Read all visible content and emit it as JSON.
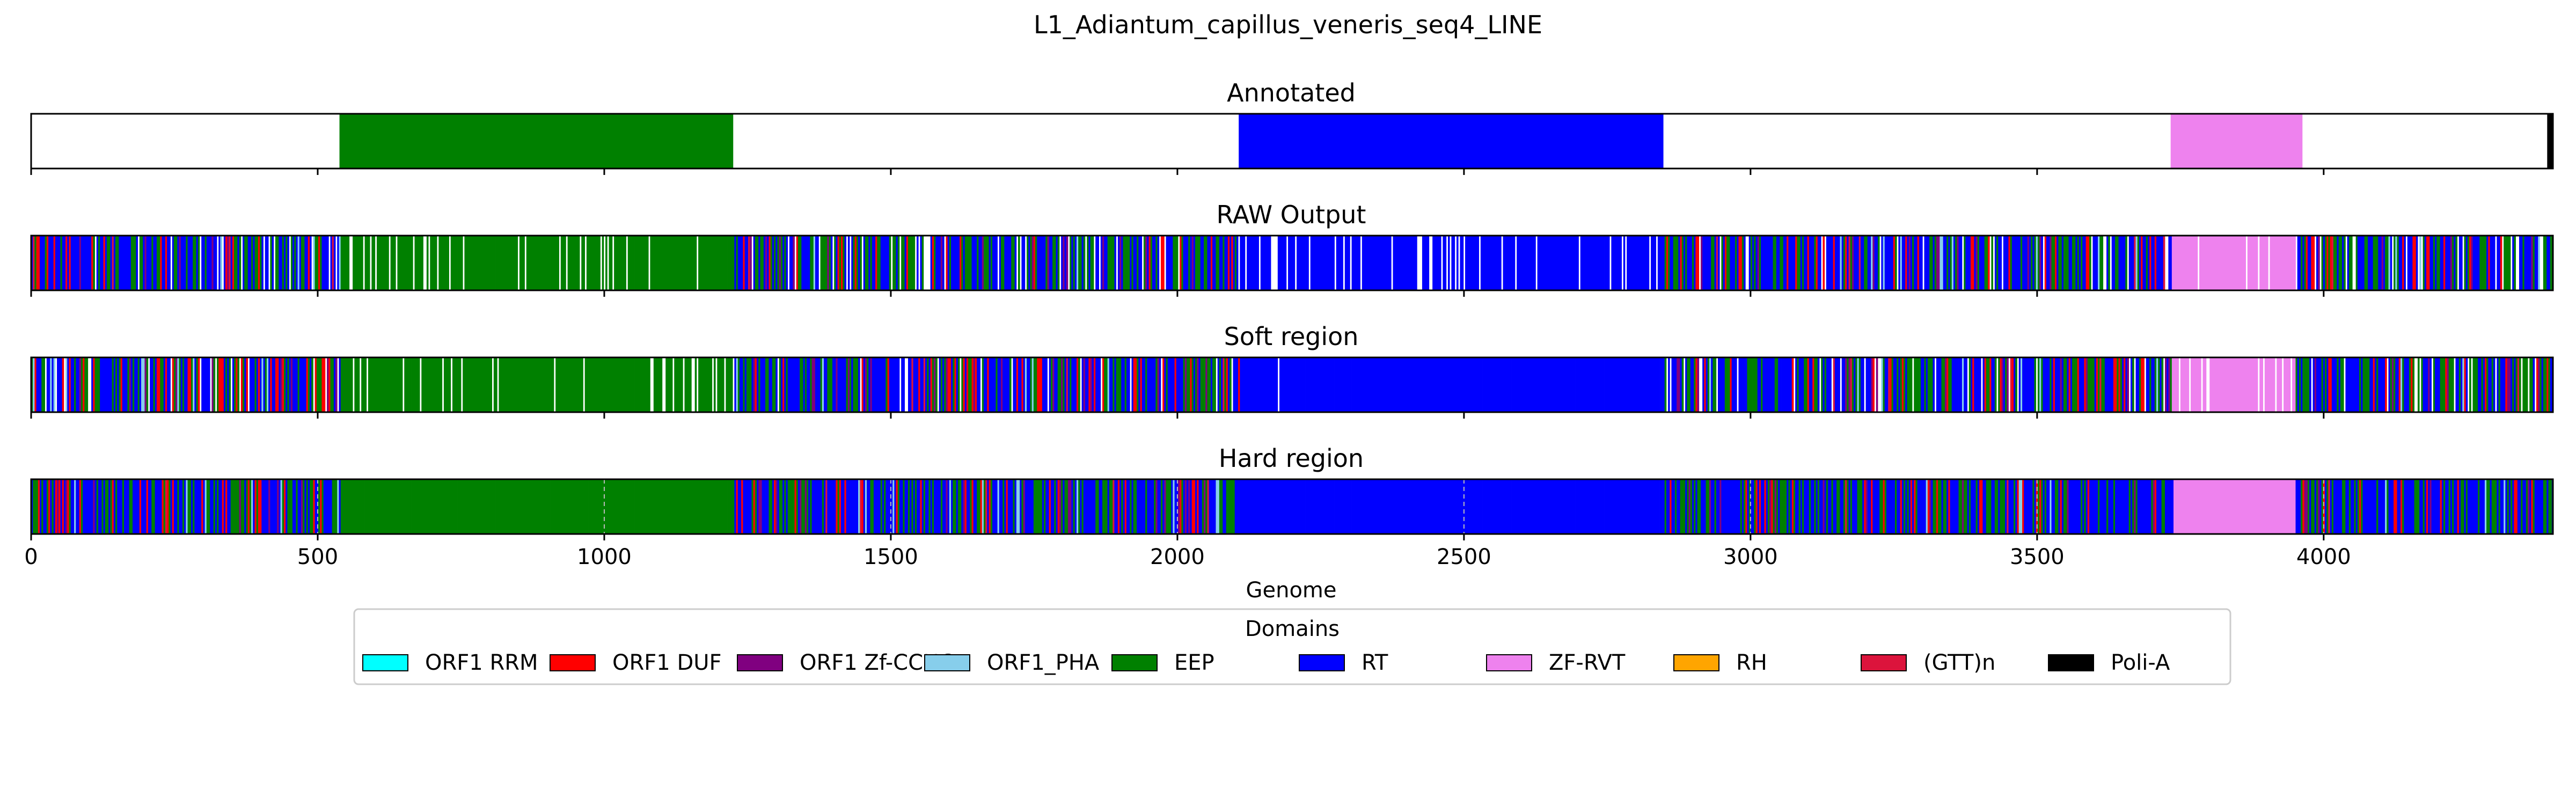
{
  "figure": {
    "title": "L1_Adiantum_capillus_veneris_seq4_LINE"
  },
  "chart_data": {
    "type": "track",
    "xlim": [
      0,
      4400
    ],
    "xticks": [
      0,
      500,
      1000,
      1500,
      2000,
      2500,
      3000,
      3500,
      4000
    ],
    "xlabel": "Genome",
    "grid": "dashed vertical lines on the Hard region track",
    "legend": {
      "title": "Domains",
      "placement": "bottom-center",
      "entries": [
        {
          "label": "ORF1 RRM",
          "color": "#00ffff"
        },
        {
          "label": "ORF1 DUF",
          "color": "#ff0000"
        },
        {
          "label": "ORF1 Zf-CCHC",
          "color": "#800080"
        },
        {
          "label": "ORF1_PHA",
          "color": "#87ceeb"
        },
        {
          "label": "EEP",
          "color": "#008000"
        },
        {
          "label": "RT",
          "color": "#0000ff"
        },
        {
          "label": "ZF-RVT",
          "color": "#ee82ee"
        },
        {
          "label": "RH",
          "color": "#ffa500"
        },
        {
          "label": "(GTT)n",
          "color": "#dc143c"
        },
        {
          "label": "Poli-A",
          "color": "#000000"
        }
      ]
    },
    "tracks": [
      {
        "title": "Annotated",
        "segments": [
          {
            "domain": "EEP",
            "start": 538,
            "end": 1225
          },
          {
            "domain": "RT",
            "start": 2107,
            "end": 2848
          },
          {
            "domain": "ZF-RVT",
            "start": 3733,
            "end": 3963
          },
          {
            "domain": "Poli-A",
            "start": 4390,
            "end": 4400
          }
        ]
      },
      {
        "title": "RAW Output",
        "background_pattern": "dense fine interleaving of RT, EEP and ORF1 DUF with occasional ORF1 Zf-CCHC and ORF1_PHA calls and white gaps",
        "segments": [
          {
            "domain": "EEP",
            "start": 538,
            "end": 1225,
            "fill": "striped with white gaps"
          },
          {
            "domain": "RT",
            "start": 2107,
            "end": 2848,
            "fill": "striped with white gaps"
          },
          {
            "domain": "ZF-RVT",
            "start": 3733,
            "end": 3950,
            "fill": "striped with white gaps"
          }
        ]
      },
      {
        "title": "Soft region",
        "background_pattern": "dense fine interleaving of RT, EEP and ORF1 DUF with occasional ORF1 Zf-CCHC and ORF1_PHA calls and white gaps",
        "segments": [
          {
            "domain": "EEP",
            "start": 538,
            "end": 1225,
            "fill": "striped with white gaps"
          },
          {
            "domain": "RT",
            "start": 2107,
            "end": 2848,
            "fill": "mostly solid"
          },
          {
            "domain": "ZF-RVT",
            "start": 3733,
            "end": 3950,
            "fill": "striped with white gaps"
          }
        ]
      },
      {
        "title": "Hard region",
        "background_pattern": "dense fine interleaving of RT, EEP and ORF1 DUF with occasional ORF1 Zf-CCHC and ORF1_PHA calls",
        "segments": [
          {
            "domain": "EEP",
            "start": 538,
            "end": 1225,
            "fill": "solid"
          },
          {
            "domain": "RT",
            "start": 2107,
            "end": 2848,
            "fill": "solid"
          },
          {
            "domain": "ZF-RVT",
            "start": 3737,
            "end": 3950,
            "fill": "solid"
          }
        ]
      }
    ]
  }
}
